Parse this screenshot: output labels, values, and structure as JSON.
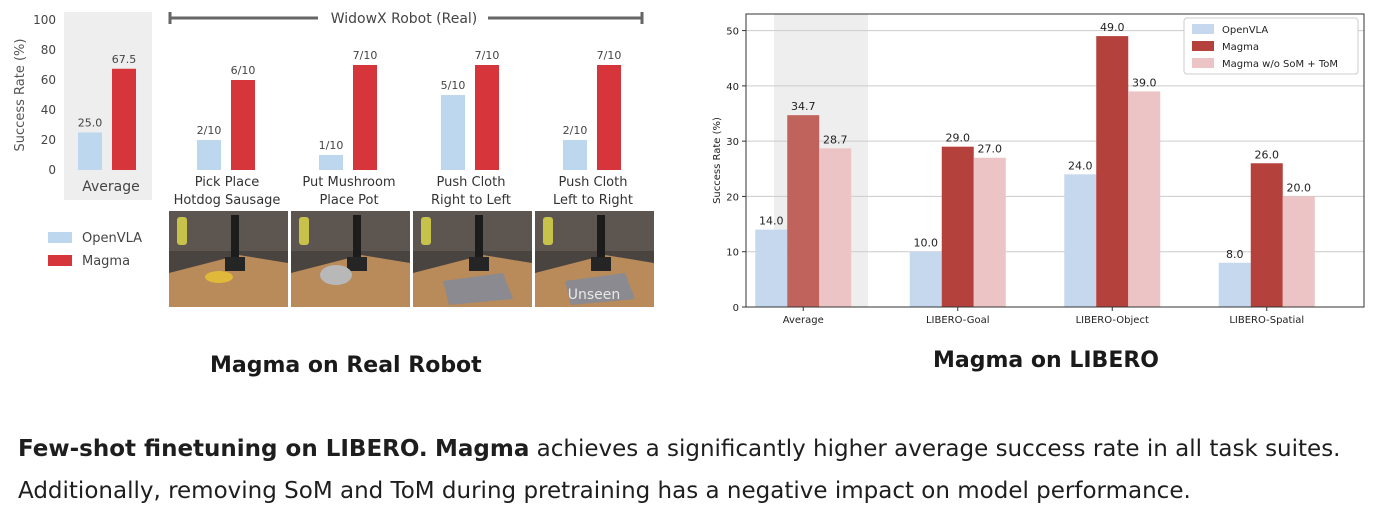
{
  "colors": {
    "openvla_left": "#bcd7ee",
    "magma_left": "#d5353b",
    "openvla_right": "#c5d8ee",
    "magma_right": "#b5413c",
    "wo_right": "#ecc4c6",
    "average_band": "#eeeeee",
    "photo_counter": "#b98a5a",
    "photo_wall": "#3f3a36"
  },
  "chart_data": [
    {
      "type": "bar",
      "section_title": "WidowX Robot (Real)",
      "ylabel": "Success Rate (%)",
      "ylim": [
        0,
        100
      ],
      "yticks": [
        "0",
        "20",
        "40",
        "60",
        "80",
        "100"
      ],
      "legend": [
        "OpenVLA",
        "Magma"
      ],
      "average": {
        "label": "Average",
        "values": [
          25.0,
          67.5
        ],
        "value_labels": [
          "25.0",
          "67.5"
        ]
      },
      "tasks": [
        {
          "lines": [
            "Pick Place",
            "Hotdog Sausage"
          ],
          "values": [
            20,
            60
          ],
          "value_labels": [
            "2/10",
            "6/10"
          ]
        },
        {
          "lines": [
            "Put Mushroom",
            "Place Pot"
          ],
          "values": [
            10,
            70
          ],
          "value_labels": [
            "1/10",
            "7/10"
          ]
        },
        {
          "lines": [
            "Push Cloth",
            "Right to Left"
          ],
          "values": [
            50,
            70
          ],
          "value_labels": [
            "5/10",
            "7/10"
          ]
        },
        {
          "lines": [
            "Push Cloth",
            "Left to Right"
          ],
          "values": [
            20,
            70
          ],
          "value_labels": [
            "2/10",
            "7/10"
          ]
        }
      ],
      "photo_label": "Unseen"
    },
    {
      "type": "bar",
      "ylabel": "Success Rate (%)",
      "ylim": [
        0,
        53
      ],
      "yticks": [
        0,
        10,
        20,
        30,
        40,
        50
      ],
      "grid": true,
      "legend_position": "top-right",
      "categories": [
        "Average",
        "LIBERO-Goal",
        "LIBERO-Object",
        "LIBERO-Spatial"
      ],
      "series": [
        {
          "name": "OpenVLA",
          "values": [
            14.0,
            10.0,
            24.0,
            8.0
          ],
          "labels": [
            "14.0",
            "10.0",
            "24.0",
            "8.0"
          ]
        },
        {
          "name": "Magma",
          "values": [
            34.7,
            29.0,
            49.0,
            26.0
          ],
          "labels": [
            "34.7",
            "29.0",
            "49.0",
            "26.0"
          ]
        },
        {
          "name": "Magma w/o SoM + ToM",
          "values": [
            28.7,
            27.0,
            39.0,
            20.0
          ],
          "labels": [
            "28.7",
            "27.0",
            "39.0",
            "20.0"
          ]
        }
      ]
    }
  ],
  "captions": {
    "left": "Magma on Real Robot",
    "right": "Magma on LIBERO"
  },
  "description": {
    "bold1": "Few-shot finetuning on LIBERO.",
    "bold2": "Magma",
    "text1": " achieves a significantly higher average success rate in all task suites.",
    "line2": "Additionally, removing SoM and ToM during pretraining has a negative impact on model performance."
  }
}
